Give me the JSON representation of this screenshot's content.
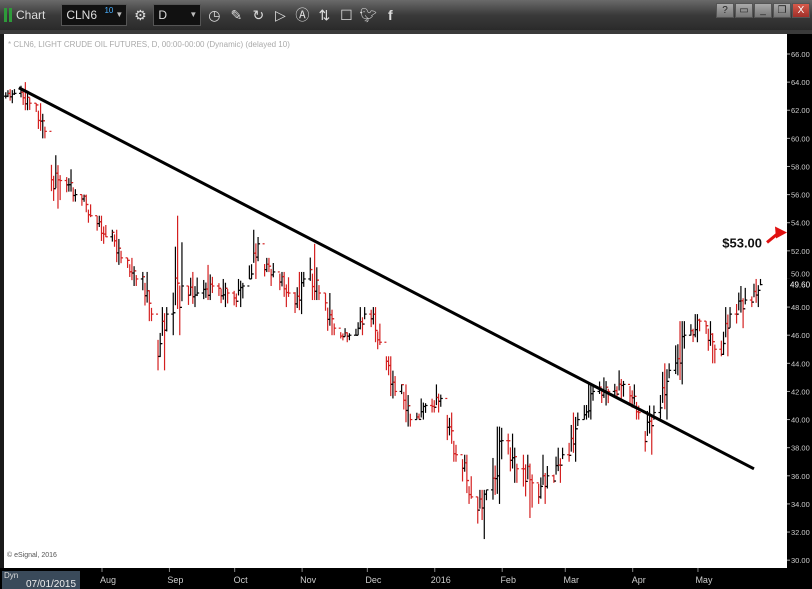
{
  "window": {
    "title": "Chart",
    "symbol": "CLN6",
    "symbol_badge": "10",
    "interval": "D",
    "toolbar_icons": [
      "gear-icon",
      "clock-icon",
      "pencil-icon",
      "refresh-icon",
      "play-icon",
      "alert-icon",
      "link-icon",
      "comment-icon",
      "twitter-icon",
      "facebook-icon"
    ],
    "window_buttons": [
      "?",
      "▭",
      "_",
      "❐",
      "X"
    ]
  },
  "chart_header": "* CLN6, LIGHT CRUDE OIL FUTURES, D, 00:00-00:00 (Dynamic) (delayed 10)",
  "copyright": "© eSignal, 2016",
  "cursor_label": "07/01/2015",
  "dyn_label": "Dyn",
  "colors": {
    "up": "#000000",
    "down": "#d42020",
    "trendline": "#000000",
    "arrow": "#e01010"
  },
  "chart_data": {
    "type": "ohlc-bar",
    "ylim": [
      30,
      67
    ],
    "y_ticks": [
      "66.00",
      "64.00",
      "62.00",
      "60.00",
      "58.00",
      "56.00",
      "54.00",
      "52.00",
      "50.00",
      "48.00",
      "46.00",
      "44.00",
      "42.00",
      "40.00",
      "38.00",
      "36.00",
      "34.00",
      "32.00",
      "30.00"
    ],
    "x_ticks": [
      {
        "label": "Aug",
        "date": "2015-08-01"
      },
      {
        "label": "Sep",
        "date": "2015-09-01"
      },
      {
        "label": "Oct",
        "date": "2015-10-01"
      },
      {
        "label": "Nov",
        "date": "2015-11-01"
      },
      {
        "label": "Dec",
        "date": "2015-12-01"
      },
      {
        "label": "2016",
        "date": "2016-01-01"
      },
      {
        "label": "Feb",
        "date": "2016-02-01"
      },
      {
        "label": "Mar",
        "date": "2016-03-01"
      },
      {
        "label": "Apr",
        "date": "2016-04-01"
      },
      {
        "label": "May",
        "date": "2016-05-01"
      }
    ],
    "last_price": "49.60",
    "weekly_ohlc": [
      [
        "2015-06-19",
        63,
        63.5,
        62.5,
        63.2
      ],
      [
        "2015-06-26",
        63,
        64,
        62,
        62.5
      ],
      [
        "2015-07-03",
        62,
        62.5,
        60,
        60.5
      ],
      [
        "2015-07-10",
        57,
        58.8,
        55,
        57
      ],
      [
        "2015-07-17",
        57,
        57.8,
        55.5,
        56
      ],
      [
        "2015-07-24",
        56,
        56,
        54,
        54.5
      ],
      [
        "2015-07-31",
        54,
        54.5,
        52.5,
        53
      ],
      [
        "2015-08-07",
        53,
        53.5,
        51,
        51.5
      ],
      [
        "2015-08-14",
        51,
        51.5,
        49.5,
        50
      ],
      [
        "2015-08-21",
        50,
        50.5,
        47,
        47.5
      ],
      [
        "2015-08-28",
        45,
        48,
        43.5,
        47.5
      ],
      [
        "2015-09-04",
        49,
        54.5,
        46,
        49.5
      ],
      [
        "2015-09-11",
        49,
        50.5,
        48,
        49
      ],
      [
        "2015-09-18",
        49,
        51,
        48.5,
        49.5
      ],
      [
        "2015-09-25",
        49,
        50,
        48,
        49
      ],
      [
        "2015-10-02",
        48.5,
        50,
        48,
        49.5
      ],
      [
        "2015-10-09",
        50,
        53.5,
        50,
        52.5
      ],
      [
        "2015-10-16",
        51,
        51.5,
        49.5,
        50.5
      ],
      [
        "2015-10-23",
        50,
        50.5,
        48,
        49
      ],
      [
        "2015-10-30",
        48,
        50.5,
        47.5,
        50
      ],
      [
        "2015-11-06",
        50,
        52.5,
        48.5,
        49
      ],
      [
        "2015-11-13",
        48,
        49,
        46,
        46.5
      ],
      [
        "2015-11-20",
        46,
        46.5,
        45.5,
        46
      ],
      [
        "2015-11-27",
        46,
        48,
        46,
        47.5
      ],
      [
        "2015-12-04",
        47.5,
        48,
        45,
        45.5
      ],
      [
        "2015-12-11",
        44,
        44.5,
        41.5,
        42
      ],
      [
        "2015-12-18",
        42,
        42.5,
        39.5,
        40
      ],
      [
        "2015-12-25",
        40,
        41.5,
        40,
        41
      ],
      [
        "2016-01-01",
        41,
        42.5,
        40.5,
        41.5
      ],
      [
        "2016-01-08",
        40,
        40.5,
        37,
        37.5
      ],
      [
        "2016-01-15",
        37,
        37.5,
        34,
        34.5
      ],
      [
        "2016-01-22",
        33.5,
        35,
        31.5,
        35
      ],
      [
        "2016-01-29",
        35,
        39.5,
        34,
        38.5
      ],
      [
        "2016-02-05",
        38,
        39,
        35.5,
        36.5
      ],
      [
        "2016-02-12",
        36.5,
        37.5,
        33,
        35.5
      ],
      [
        "2016-02-19",
        35,
        37.5,
        34,
        36
      ],
      [
        "2016-02-26",
        36,
        38,
        35.5,
        37.5
      ],
      [
        "2016-03-04",
        37.5,
        40.5,
        37,
        40
      ],
      [
        "2016-03-11",
        40,
        42.5,
        40,
        42
      ],
      [
        "2016-03-18",
        42,
        43,
        41,
        42
      ],
      [
        "2016-03-25",
        42,
        43.5,
        41.5,
        42.5
      ],
      [
        "2016-04-01",
        42,
        42.5,
        40,
        40.5
      ],
      [
        "2016-04-08",
        39,
        41,
        37.5,
        40.5
      ],
      [
        "2016-04-15",
        41,
        44,
        40,
        43.5
      ],
      [
        "2016-04-22",
        43.5,
        47,
        42.5,
        46
      ],
      [
        "2016-04-29",
        46,
        47.5,
        45.5,
        47
      ],
      [
        "2016-05-06",
        46.5,
        47,
        44,
        45
      ],
      [
        "2016-05-13",
        45,
        48,
        44.5,
        47.5
      ],
      [
        "2016-05-20",
        48,
        49.5,
        46.5,
        48.5
      ],
      [
        "2016-05-27",
        48.5,
        50,
        48,
        49.6
      ]
    ],
    "trendline": [
      [
        "2015-06-21",
        63.6
      ],
      [
        "2016-05-24",
        36.5
      ]
    ],
    "annotation": {
      "text": "$53.00",
      "arrow_from": [
        "2016-05-30",
        52.6
      ],
      "arrow_to_value": 53.3
    }
  }
}
